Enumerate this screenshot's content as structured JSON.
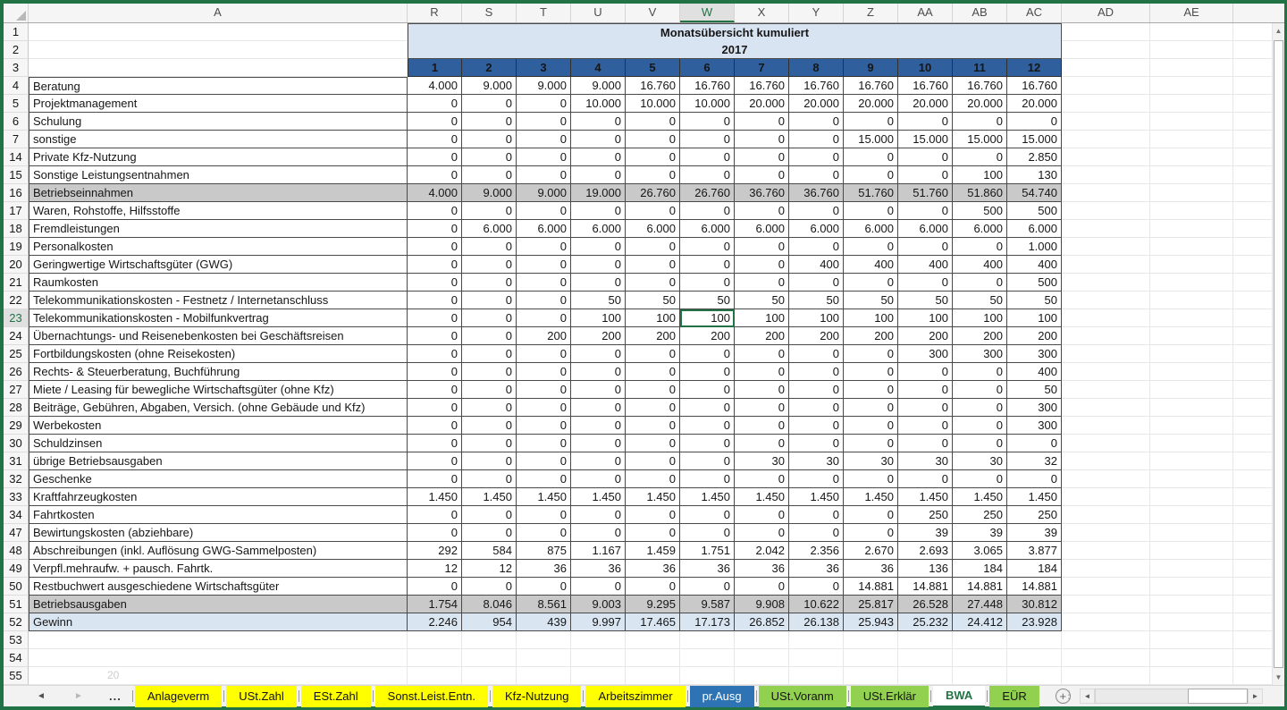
{
  "header": {
    "title": "Monatsübersicht kumuliert",
    "year": "2017"
  },
  "selection": {
    "column": "W",
    "row": "23"
  },
  "columns": {
    "first": "A",
    "data": [
      "R",
      "S",
      "T",
      "U",
      "V",
      "W",
      "X",
      "Y",
      "Z",
      "AA",
      "AB",
      "AC"
    ],
    "trailing": [
      "AD",
      "AE"
    ]
  },
  "months": [
    "1",
    "2",
    "3",
    "4",
    "5",
    "6",
    "7",
    "8",
    "9",
    "10",
    "11",
    "12"
  ],
  "rows": [
    {
      "num": "4",
      "label": "Beratung",
      "style": "normal",
      "values": [
        "4.000",
        "9.000",
        "9.000",
        "9.000",
        "16.760",
        "16.760",
        "16.760",
        "16.760",
        "16.760",
        "16.760",
        "16.760",
        "16.760"
      ]
    },
    {
      "num": "5",
      "label": "Projektmanagement",
      "style": "normal",
      "values": [
        "0",
        "0",
        "0",
        "10.000",
        "10.000",
        "10.000",
        "20.000",
        "20.000",
        "20.000",
        "20.000",
        "20.000",
        "20.000"
      ]
    },
    {
      "num": "6",
      "label": "Schulung",
      "style": "normal",
      "values": [
        "0",
        "0",
        "0",
        "0",
        "0",
        "0",
        "0",
        "0",
        "0",
        "0",
        "0",
        "0"
      ]
    },
    {
      "num": "7",
      "label": "sonstige",
      "style": "normal",
      "values": [
        "0",
        "0",
        "0",
        "0",
        "0",
        "0",
        "0",
        "0",
        "15.000",
        "15.000",
        "15.000",
        "15.000"
      ]
    },
    {
      "num": "14",
      "label": "Private Kfz-Nutzung",
      "style": "normal",
      "values": [
        "0",
        "0",
        "0",
        "0",
        "0",
        "0",
        "0",
        "0",
        "0",
        "0",
        "0",
        "2.850"
      ]
    },
    {
      "num": "15",
      "label": "Sonstige Leistungsentnahmen",
      "style": "normal",
      "values": [
        "0",
        "0",
        "0",
        "0",
        "0",
        "0",
        "0",
        "0",
        "0",
        "0",
        "100",
        "130"
      ]
    },
    {
      "num": "16",
      "label": "Betriebseinnahmen",
      "style": "subtotal",
      "values": [
        "4.000",
        "9.000",
        "9.000",
        "19.000",
        "26.760",
        "26.760",
        "36.760",
        "36.760",
        "51.760",
        "51.760",
        "51.860",
        "54.740"
      ]
    },
    {
      "num": "17",
      "label": "Waren, Rohstoffe, Hilfsstoffe",
      "style": "normal",
      "values": [
        "0",
        "0",
        "0",
        "0",
        "0",
        "0",
        "0",
        "0",
        "0",
        "0",
        "500",
        "500"
      ]
    },
    {
      "num": "18",
      "label": "Fremdleistungen",
      "style": "normal",
      "values": [
        "0",
        "6.000",
        "6.000",
        "6.000",
        "6.000",
        "6.000",
        "6.000",
        "6.000",
        "6.000",
        "6.000",
        "6.000",
        "6.000"
      ]
    },
    {
      "num": "19",
      "label": "Personalkosten",
      "style": "normal",
      "values": [
        "0",
        "0",
        "0",
        "0",
        "0",
        "0",
        "0",
        "0",
        "0",
        "0",
        "0",
        "1.000"
      ]
    },
    {
      "num": "20",
      "label": "Geringwertige Wirtschaftsgüter (GWG)",
      "style": "normal",
      "values": [
        "0",
        "0",
        "0",
        "0",
        "0",
        "0",
        "0",
        "400",
        "400",
        "400",
        "400",
        "400"
      ]
    },
    {
      "num": "21",
      "label": "Raumkosten",
      "style": "normal",
      "values": [
        "0",
        "0",
        "0",
        "0",
        "0",
        "0",
        "0",
        "0",
        "0",
        "0",
        "0",
        "500"
      ]
    },
    {
      "num": "22",
      "label": "Telekommunikationskosten - Festnetz / Internetanschluss",
      "style": "normal",
      "values": [
        "0",
        "0",
        "0",
        "50",
        "50",
        "50",
        "50",
        "50",
        "50",
        "50",
        "50",
        "50"
      ]
    },
    {
      "num": "23",
      "label": "Telekommunikationskosten - Mobilfunkvertrag",
      "style": "normal",
      "selected": true,
      "values": [
        "0",
        "0",
        "0",
        "100",
        "100",
        "100",
        "100",
        "100",
        "100",
        "100",
        "100",
        "100"
      ]
    },
    {
      "num": "24",
      "label": "Übernachtungs- und Reisenebenkosten bei Geschäftsreisen",
      "style": "normal",
      "values": [
        "0",
        "0",
        "200",
        "200",
        "200",
        "200",
        "200",
        "200",
        "200",
        "200",
        "200",
        "200"
      ]
    },
    {
      "num": "25",
      "label": "Fortbildungskosten (ohne Reisekosten)",
      "style": "normal",
      "values": [
        "0",
        "0",
        "0",
        "0",
        "0",
        "0",
        "0",
        "0",
        "0",
        "300",
        "300",
        "300"
      ]
    },
    {
      "num": "26",
      "label": "Rechts- & Steuerberatung, Buchführung",
      "style": "normal",
      "values": [
        "0",
        "0",
        "0",
        "0",
        "0",
        "0",
        "0",
        "0",
        "0",
        "0",
        "0",
        "400"
      ]
    },
    {
      "num": "27",
      "label": "Miete / Leasing für bewegliche Wirtschaftsgüter (ohne Kfz)",
      "style": "normal",
      "values": [
        "0",
        "0",
        "0",
        "0",
        "0",
        "0",
        "0",
        "0",
        "0",
        "0",
        "0",
        "50"
      ]
    },
    {
      "num": "28",
      "label": "Beiträge, Gebühren, Abgaben, Versich. (ohne Gebäude und Kfz)",
      "style": "normal",
      "values": [
        "0",
        "0",
        "0",
        "0",
        "0",
        "0",
        "0",
        "0",
        "0",
        "0",
        "0",
        "300"
      ]
    },
    {
      "num": "29",
      "label": "Werbekosten",
      "style": "normal",
      "values": [
        "0",
        "0",
        "0",
        "0",
        "0",
        "0",
        "0",
        "0",
        "0",
        "0",
        "0",
        "300"
      ]
    },
    {
      "num": "30",
      "label": "Schuldzinsen",
      "style": "normal",
      "values": [
        "0",
        "0",
        "0",
        "0",
        "0",
        "0",
        "0",
        "0",
        "0",
        "0",
        "0",
        "0"
      ]
    },
    {
      "num": "31",
      "label": "übrige Betriebsausgaben",
      "style": "normal",
      "values": [
        "0",
        "0",
        "0",
        "0",
        "0",
        "0",
        "30",
        "30",
        "30",
        "30",
        "30",
        "32"
      ]
    },
    {
      "num": "32",
      "label": "Geschenke",
      "style": "normal",
      "values": [
        "0",
        "0",
        "0",
        "0",
        "0",
        "0",
        "0",
        "0",
        "0",
        "0",
        "0",
        "0"
      ]
    },
    {
      "num": "33",
      "label": "Kraftfahrzeugkosten",
      "style": "normal",
      "values": [
        "1.450",
        "1.450",
        "1.450",
        "1.450",
        "1.450",
        "1.450",
        "1.450",
        "1.450",
        "1.450",
        "1.450",
        "1.450",
        "1.450"
      ]
    },
    {
      "num": "34",
      "label": "Fahrtkosten",
      "style": "normal",
      "values": [
        "0",
        "0",
        "0",
        "0",
        "0",
        "0",
        "0",
        "0",
        "0",
        "250",
        "250",
        "250"
      ]
    },
    {
      "num": "47",
      "label": "Bewirtungskosten (abziehbare)",
      "style": "normal",
      "values": [
        "0",
        "0",
        "0",
        "0",
        "0",
        "0",
        "0",
        "0",
        "0",
        "39",
        "39",
        "39"
      ]
    },
    {
      "num": "48",
      "label": "Abschreibungen (inkl. Auflösung GWG-Sammelposten)",
      "style": "normal",
      "values": [
        "292",
        "584",
        "875",
        "1.167",
        "1.459",
        "1.751",
        "2.042",
        "2.356",
        "2.670",
        "2.693",
        "3.065",
        "3.877"
      ]
    },
    {
      "num": "49",
      "label": "Verpfl.mehraufw. + pausch. Fahrtk.",
      "style": "normal",
      "values": [
        "12",
        "12",
        "36",
        "36",
        "36",
        "36",
        "36",
        "36",
        "36",
        "136",
        "184",
        "184"
      ]
    },
    {
      "num": "50",
      "label": "Restbuchwert ausgeschiedene Wirtschaftsgüter",
      "style": "normal",
      "values": [
        "0",
        "0",
        "0",
        "0",
        "0",
        "0",
        "0",
        "0",
        "14.881",
        "14.881",
        "14.881",
        "14.881"
      ]
    },
    {
      "num": "51",
      "label": "Betriebsausgaben",
      "style": "subtotal",
      "values": [
        "1.754",
        "8.046",
        "8.561",
        "9.003",
        "9.295",
        "9.587",
        "9.908",
        "10.622",
        "25.817",
        "26.528",
        "27.448",
        "30.812"
      ]
    },
    {
      "num": "52",
      "label": "Gewinn",
      "style": "result",
      "values": [
        "2.246",
        "954",
        "439",
        "9.997",
        "17.465",
        "17.173",
        "26.852",
        "26.138",
        "25.943",
        "25.232",
        "24.412",
        "23.928"
      ]
    }
  ],
  "empty_rows": [
    "53",
    "54",
    "55"
  ],
  "watermark": "20",
  "sheet_tabs": [
    {
      "label": "Anlageverm",
      "type": "yellow"
    },
    {
      "label": "USt.Zahl",
      "type": "yellow"
    },
    {
      "label": "ESt.Zahl",
      "type": "yellow"
    },
    {
      "label": "Sonst.Leist.Entn.",
      "type": "yellow"
    },
    {
      "label": "Kfz-Nutzung",
      "type": "yellow"
    },
    {
      "label": "Arbeitszimmer",
      "type": "yellow"
    },
    {
      "label": "pr.Ausg",
      "type": "blue"
    },
    {
      "label": "USt.Voranm",
      "type": "green"
    },
    {
      "label": "USt.Erklär",
      "type": "green"
    },
    {
      "label": "BWA",
      "type": "active"
    },
    {
      "label": "EÜR",
      "type": "green"
    }
  ],
  "icons": {
    "nav_left": "◄",
    "nav_right": "►",
    "more_tabs": "...",
    "add_sheet": "+",
    "scroll_up": "▲",
    "scroll_down": "▼",
    "scroll_left": "◄",
    "scroll_right": "►"
  },
  "colors": {
    "accent": "#217346",
    "month_row": "#2F5F9D",
    "title_band": "#D9E4F3",
    "subtotal_row": "#C9C9C9",
    "result_row": "#DAE5F2",
    "tab_yellow": "#FFFF00",
    "tab_blue": "#2E74B5",
    "tab_green": "#92D050"
  }
}
